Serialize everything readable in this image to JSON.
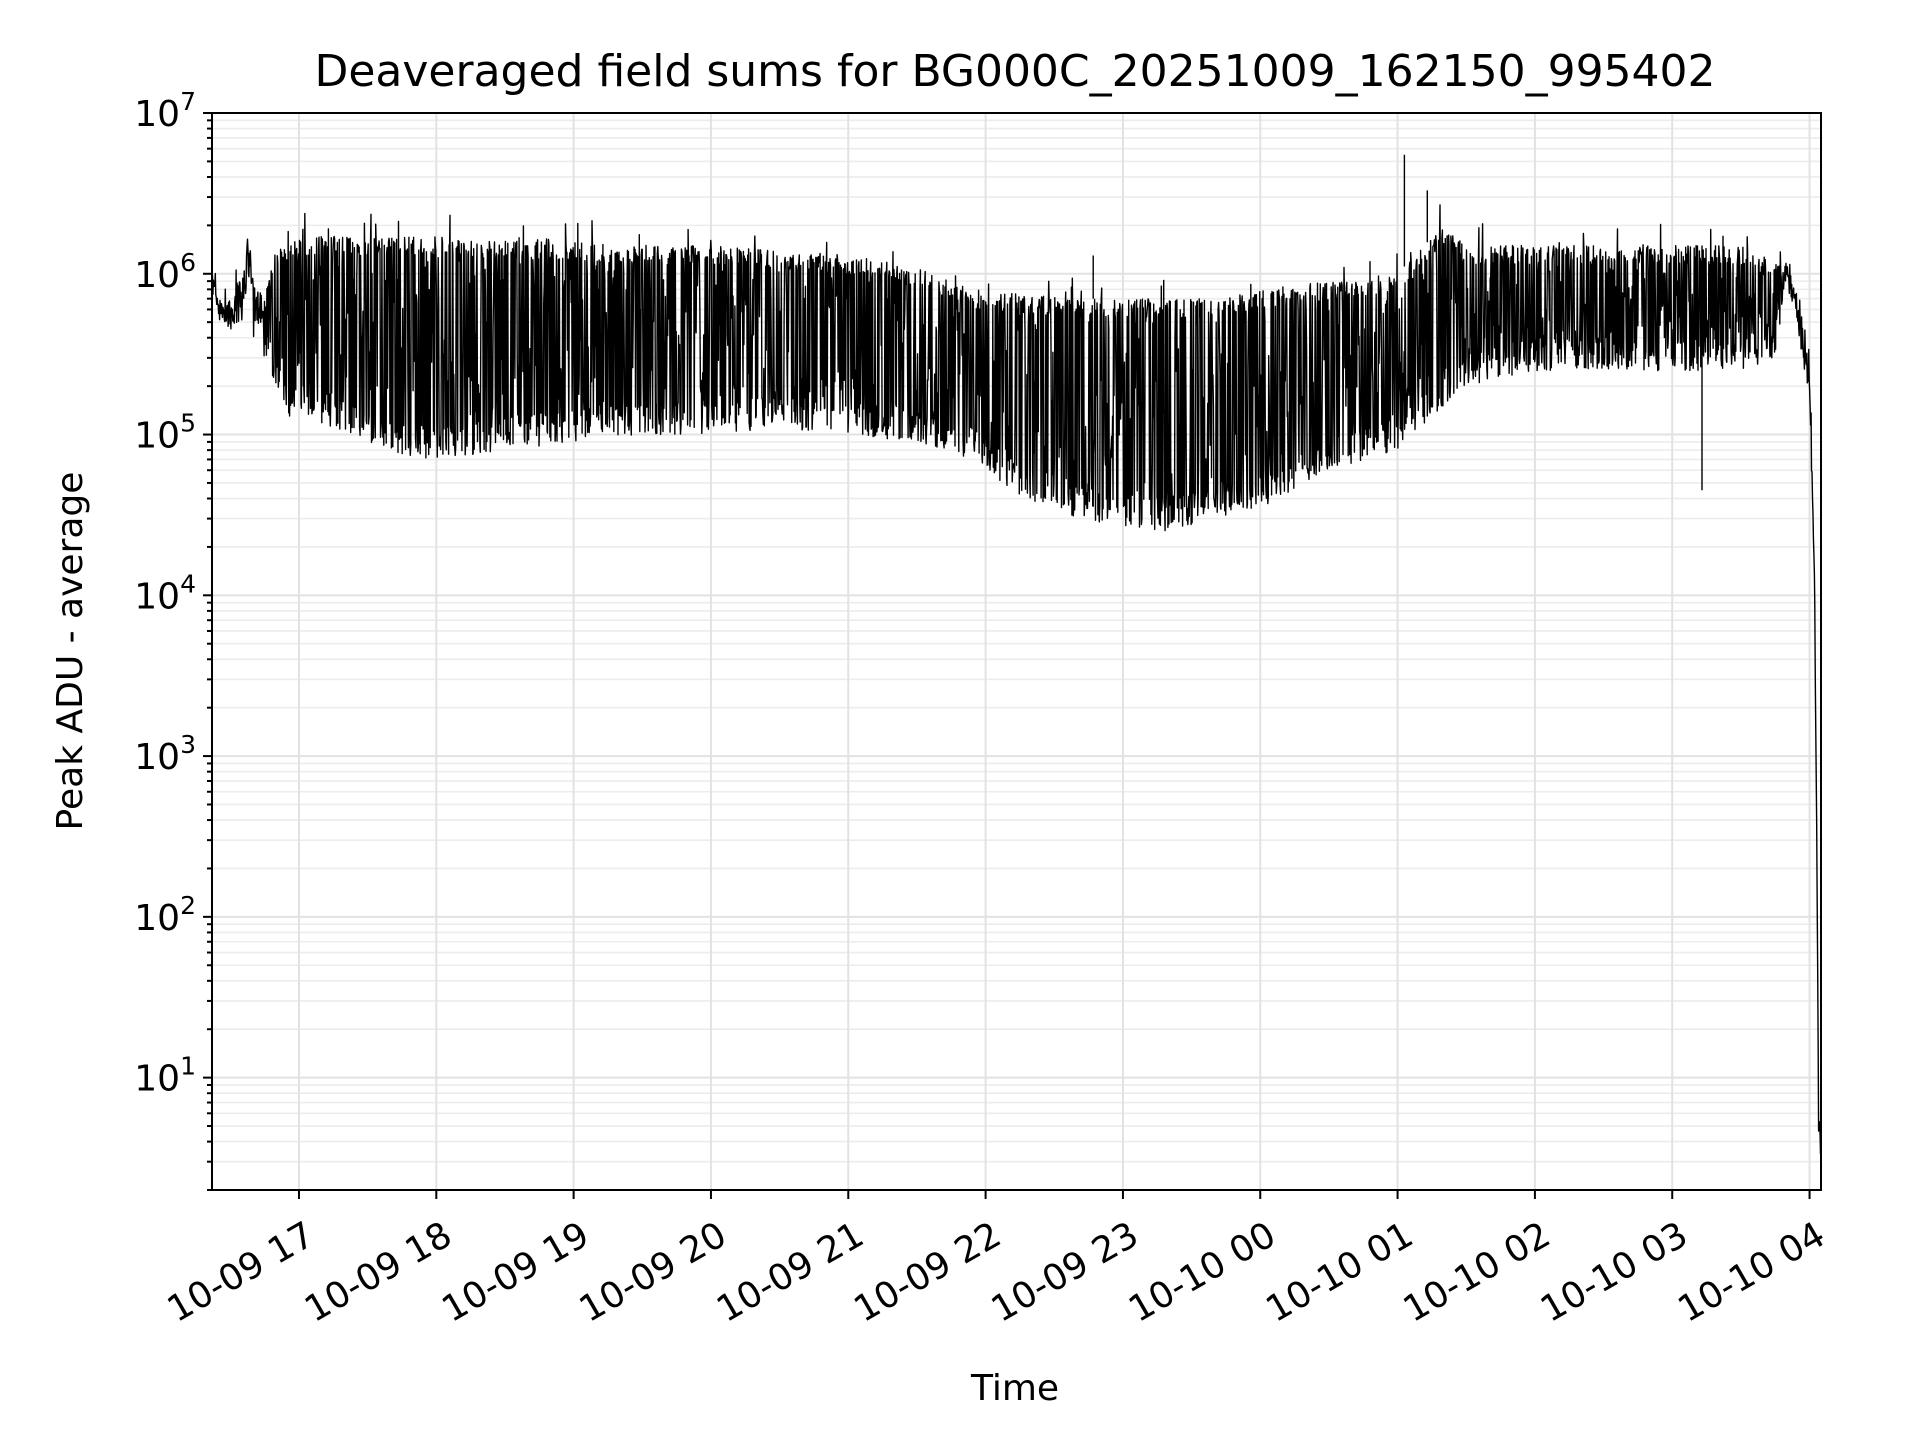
{
  "chart_data": {
    "type": "line",
    "title": "Deaveraged field sums for BG000C_20251009_162150_995402",
    "xlabel": "Time",
    "ylabel": "Peak ADU - average",
    "y_scale": "log",
    "ylim": [
      2,
      10000000
    ],
    "xlim": [
      "2025-10-09 16:22",
      "2025-10-10 04:05"
    ],
    "grid": true,
    "grid_minor": true,
    "line_color": "#000000",
    "x_ticks": [
      "10-09 17",
      "10-09 18",
      "10-09 19",
      "10-09 20",
      "10-09 21",
      "10-09 22",
      "10-09 23",
      "10-10 00",
      "10-10 01",
      "10-10 02",
      "10-10 03",
      "10-10 04"
    ],
    "y_ticks": [
      {
        "value": 10,
        "base": "10",
        "exp": "1"
      },
      {
        "value": 100,
        "base": "10",
        "exp": "2"
      },
      {
        "value": 1000,
        "base": "10",
        "exp": "3"
      },
      {
        "value": 10000,
        "base": "10",
        "exp": "4"
      },
      {
        "value": 100000,
        "base": "10",
        "exp": "5"
      },
      {
        "value": 1000000,
        "base": "10",
        "exp": "6"
      },
      {
        "value": 10000000,
        "base": "10",
        "exp": "7"
      }
    ],
    "series": [
      {
        "x": [
          "2025-10-09 16:22",
          "2025-10-09 16:25",
          "2025-10-09 16:30",
          "2025-10-09 16:35",
          "2025-10-09 16:38",
          "2025-10-09 16:40",
          "2025-10-09 16:45",
          "2025-10-09 16:50",
          "2025-10-09 16:55",
          "2025-10-09 17:00",
          "2025-10-09 17:15",
          "2025-10-09 17:30",
          "2025-10-09 17:45",
          "2025-10-09 18:00",
          "2025-10-09 18:30",
          "2025-10-09 19:00",
          "2025-10-09 19:30",
          "2025-10-09 20:00",
          "2025-10-09 20:30",
          "2025-10-09 21:00",
          "2025-10-09 21:30",
          "2025-10-09 21:55",
          "2025-10-09 22:15",
          "2025-10-09 22:40",
          "2025-10-09 23:00",
          "2025-10-09 23:20",
          "2025-10-09 23:40",
          "2025-10-10 00:00",
          "2025-10-10 00:30",
          "2025-10-10 01:00",
          "2025-10-10 01:20",
          "2025-10-10 01:30",
          "2025-10-10 02:00",
          "2025-10-10 02:30",
          "2025-10-10 03:00",
          "2025-10-10 03:30",
          "2025-10-10 03:45",
          "2025-10-10 03:50",
          "2025-10-10 03:55",
          "2025-10-10 04:00",
          "2025-10-10 04:02",
          "2025-10-10 04:03",
          "2025-10-10 04:04",
          "2025-10-10 04:05"
        ],
        "high": [
          1000000,
          700000,
          600000,
          1200000,
          1900000,
          900000,
          700000,
          1500000,
          1600000,
          1700000,
          1700000,
          1700000,
          1700000,
          1700000,
          1600000,
          1600000,
          1500000,
          1500000,
          1400000,
          1300000,
          1100000,
          800000,
          750000,
          700000,
          700000,
          700000,
          700000,
          800000,
          900000,
          1000000,
          2000000,
          1500000,
          1500000,
          1500000,
          1500000,
          1500000,
          1200000,
          1100000,
          600000,
          200000,
          20000,
          500,
          5,
          4
        ],
        "low": [
          1000000,
          500000,
          450000,
          500000,
          1000000,
          400000,
          300000,
          200000,
          130000,
          130000,
          110000,
          90000,
          75000,
          70000,
          80000,
          90000,
          100000,
          100000,
          110000,
          100000,
          90000,
          70000,
          40000,
          30000,
          27000,
          25000,
          30000,
          35000,
          60000,
          80000,
          150000,
          200000,
          250000,
          250000,
          250000,
          250000,
          300000,
          1000000,
          600000,
          200000,
          20000,
          500,
          5,
          4
        ]
      }
    ],
    "annotations": [
      {
        "x": "2025-10-10 01:03",
        "y": 5500000,
        "label": ""
      },
      {
        "x": "2025-10-10 01:13",
        "y": 3300000,
        "label": ""
      },
      {
        "x": "2025-10-09 22:47",
        "y": 1300000,
        "label": ""
      },
      {
        "x": "2025-10-10 03:13",
        "y": 45000,
        "label": ""
      }
    ]
  }
}
